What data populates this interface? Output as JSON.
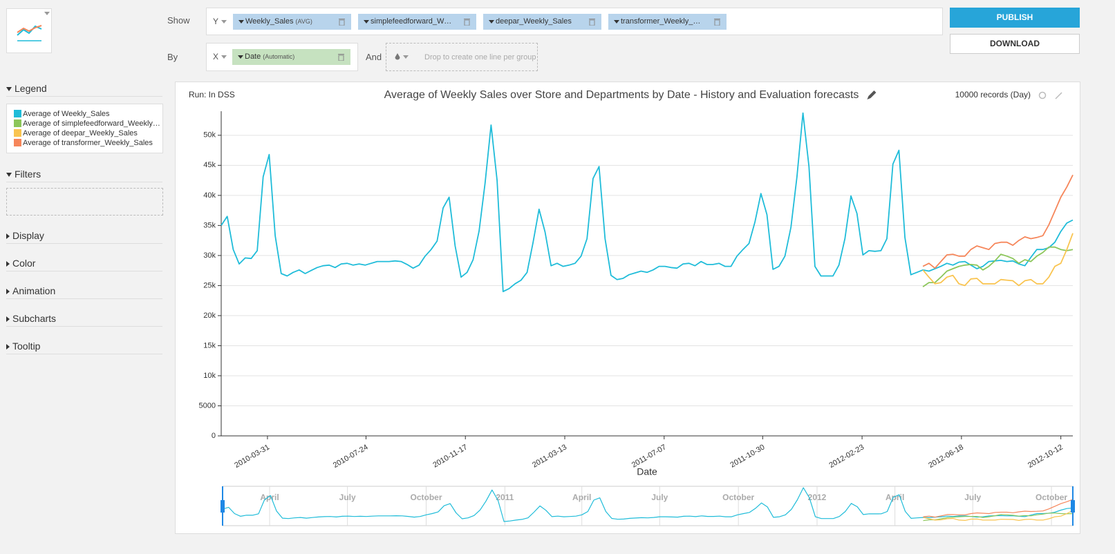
{
  "ui": {
    "show_label": "Show",
    "by_label": "By",
    "and_label": "And",
    "y_axis": "Y",
    "x_axis": "X",
    "measures": [
      {
        "name": "Weekly_Sales",
        "agg": "(AVG)"
      },
      {
        "name": "simplefeedforward_Weekly_Sales"
      },
      {
        "name": "deepar_Weekly_Sales"
      },
      {
        "name": "transformer_Weekly_Sales"
      }
    ],
    "dimension": {
      "name": "Date",
      "mode": "(Automatic)"
    },
    "group_drop": "Drop to create one line per group",
    "publish": "PUBLISH",
    "download": "DOWNLOAD",
    "sidebar": {
      "legend": "Legend",
      "filters": "Filters",
      "sections": [
        "Display",
        "Color",
        "Animation",
        "Subcharts",
        "Tooltip"
      ]
    },
    "run": "Run: In DSS",
    "records": "10000 records (Day)"
  },
  "chart_data": {
    "type": "line",
    "title": "Average of Weekly Sales over Store and Departments by Date - History and Evaluation forecasts",
    "xlabel": "Date",
    "grid": true,
    "x": [
      "2010-02-05",
      "2010-02-12",
      "2010-02-19",
      "2010-02-26",
      "2010-03-05",
      "2010-03-12",
      "2010-03-19",
      "2010-03-26",
      "2010-04-02",
      "2010-04-09",
      "2010-04-16",
      "2010-04-23",
      "2010-04-30",
      "2010-05-07",
      "2010-05-14",
      "2010-05-21",
      "2010-05-28",
      "2010-06-04",
      "2010-06-11",
      "2010-06-18",
      "2010-06-25",
      "2010-07-02",
      "2010-07-09",
      "2010-07-16",
      "2010-07-23",
      "2010-07-30",
      "2010-08-06",
      "2010-08-13",
      "2010-08-20",
      "2010-08-27",
      "2010-09-03",
      "2010-09-10",
      "2010-09-17",
      "2010-09-24",
      "2010-10-01",
      "2010-10-08",
      "2010-10-15",
      "2010-10-22",
      "2010-10-29",
      "2010-11-05",
      "2010-11-12",
      "2010-11-19",
      "2010-11-26",
      "2010-12-03",
      "2010-12-10",
      "2010-12-17",
      "2010-12-24",
      "2010-12-31",
      "2011-01-07",
      "2011-01-14",
      "2011-01-21",
      "2011-01-28",
      "2011-02-04",
      "2011-02-11",
      "2011-02-18",
      "2011-02-25",
      "2011-03-04",
      "2011-03-11",
      "2011-03-18",
      "2011-03-25",
      "2011-04-01",
      "2011-04-08",
      "2011-04-15",
      "2011-04-22",
      "2011-04-29",
      "2011-05-06",
      "2011-05-13",
      "2011-05-20",
      "2011-05-27",
      "2011-06-03",
      "2011-06-10",
      "2011-06-17",
      "2011-06-24",
      "2011-07-01",
      "2011-07-08",
      "2011-07-15",
      "2011-07-22",
      "2011-07-29",
      "2011-08-05",
      "2011-08-12",
      "2011-08-19",
      "2011-08-26",
      "2011-09-02",
      "2011-09-09",
      "2011-09-16",
      "2011-09-23",
      "2011-09-30",
      "2011-10-07",
      "2011-10-14",
      "2011-10-21",
      "2011-10-28",
      "2011-11-04",
      "2011-11-11",
      "2011-11-18",
      "2011-11-25",
      "2011-12-02",
      "2011-12-09",
      "2011-12-16",
      "2011-12-23",
      "2011-12-30",
      "2012-01-06",
      "2012-01-13",
      "2012-01-20",
      "2012-01-27",
      "2012-02-03",
      "2012-02-10",
      "2012-02-17",
      "2012-02-24",
      "2012-03-02",
      "2012-03-09",
      "2012-03-16",
      "2012-03-23",
      "2012-03-30",
      "2012-04-06",
      "2012-04-13",
      "2012-04-20",
      "2012-04-27",
      "2012-05-04",
      "2012-05-11",
      "2012-05-18",
      "2012-05-25",
      "2012-06-01",
      "2012-06-08",
      "2012-06-15",
      "2012-06-22",
      "2012-06-29",
      "2012-07-06",
      "2012-07-13",
      "2012-07-20",
      "2012-07-27",
      "2012-08-03",
      "2012-08-10",
      "2012-08-17",
      "2012-08-24",
      "2012-08-31",
      "2012-09-07",
      "2012-09-14",
      "2012-09-21",
      "2012-09-28",
      "2012-10-05",
      "2012-10-12",
      "2012-10-19",
      "2012-10-26"
    ],
    "xlim": [
      "2010-02-05",
      "2012-10-26"
    ],
    "xticks": [
      "2010-03-31",
      "2010-07-24",
      "2010-11-17",
      "2011-03-13",
      "2011-07-07",
      "2011-10-30",
      "2012-02-23",
      "2012-06-18",
      "2012-10-12"
    ],
    "ylim": [
      0,
      54000
    ],
    "yticks": [
      0,
      5000,
      {
        "value": 10000,
        "label": "10k"
      },
      {
        "value": 15000,
        "label": "15k"
      },
      {
        "value": 20000,
        "label": "20k"
      },
      {
        "value": 25000,
        "label": "25k"
      },
      {
        "value": 30000,
        "label": "30k"
      },
      {
        "value": 35000,
        "label": "35k"
      },
      {
        "value": 40000,
        "label": "40k"
      },
      {
        "value": 45000,
        "label": "45k"
      },
      {
        "value": 50000,
        "label": "50k"
      }
    ],
    "navigator_ticks": [
      {
        "value": "2010-04-01",
        "label": "April"
      },
      {
        "value": "2010-07-01",
        "label": "July"
      },
      {
        "value": "2010-10-01",
        "label": "October"
      },
      {
        "value": "2011-01-01",
        "label": "2011"
      },
      {
        "value": "2011-04-01",
        "label": "April"
      },
      {
        "value": "2011-07-01",
        "label": "July"
      },
      {
        "value": "2011-10-01",
        "label": "October"
      },
      {
        "value": "2012-01-01",
        "label": "2012"
      },
      {
        "value": "2012-04-01",
        "label": "April"
      },
      {
        "value": "2012-07-01",
        "label": "July"
      },
      {
        "value": "2012-10-01",
        "label": "October"
      }
    ],
    "series": [
      {
        "name": "Average of Weekly_Sales",
        "color": "#1fbcd9",
        "values": [
          35000,
          36500,
          31000,
          28600,
          29600,
          29500,
          30800,
          43100,
          46800,
          33300,
          27000,
          26600,
          27200,
          27600,
          27000,
          27500,
          28000,
          28300,
          28400,
          28000,
          28600,
          28700,
          28400,
          28600,
          28400,
          28700,
          29000,
          29000,
          29000,
          29100,
          29000,
          28500,
          27900,
          28400,
          29900,
          31000,
          32400,
          37900,
          39700,
          31600,
          26400,
          27200,
          29300,
          34100,
          42000,
          51700,
          42500,
          24000,
          24500,
          25300,
          25900,
          27200,
          32200,
          37700,
          33900,
          28300,
          28700,
          28200,
          28400,
          28700,
          29900,
          32800,
          42800,
          44800,
          32800,
          26700,
          26000,
          26200,
          26800,
          27100,
          27400,
          27200,
          27600,
          28200,
          28200,
          28000,
          27900,
          28600,
          28700,
          28300,
          29000,
          28500,
          28500,
          28700,
          28200,
          28200,
          29900,
          31000,
          32000,
          35600,
          40300,
          36800,
          27700,
          28200,
          29900,
          34700,
          43100,
          53700,
          44800,
          28200,
          26600,
          26600,
          26600,
          28400,
          32800,
          39900,
          37000,
          30100,
          30800,
          30700,
          30800,
          32800,
          45200,
          47500,
          33000,
          26800,
          27200,
          27600,
          27400,
          27800,
          28200,
          28700,
          28400,
          28900,
          29000,
          28400,
          27800,
          28200,
          29000,
          29100,
          29200,
          29000,
          29100,
          28600,
          28300,
          29700,
          31000,
          31000,
          31300,
          32200,
          34000,
          35400,
          35900
        ]
      },
      {
        "name": "Average of simplefeedforward_Weekly_Sales",
        "color": "#8cc65a",
        "values": [
          null,
          null,
          null,
          null,
          null,
          null,
          null,
          null,
          null,
          null,
          null,
          null,
          null,
          null,
          null,
          null,
          null,
          null,
          null,
          null,
          null,
          null,
          null,
          null,
          null,
          null,
          null,
          null,
          null,
          null,
          null,
          null,
          null,
          null,
          null,
          null,
          null,
          null,
          null,
          null,
          null,
          null,
          null,
          null,
          null,
          null,
          null,
          null,
          null,
          null,
          null,
          null,
          null,
          null,
          null,
          null,
          null,
          null,
          null,
          null,
          null,
          null,
          null,
          null,
          null,
          null,
          null,
          null,
          null,
          null,
          null,
          null,
          null,
          null,
          null,
          null,
          null,
          null,
          null,
          null,
          null,
          null,
          null,
          null,
          null,
          null,
          null,
          null,
          null,
          null,
          null,
          null,
          null,
          null,
          null,
          null,
          null,
          null,
          null,
          null,
          null,
          null,
          null,
          null,
          null,
          null,
          null,
          null,
          null,
          null,
          null,
          null,
          null,
          null,
          null,
          null,
          null,
          24800,
          25500,
          25500,
          26400,
          27400,
          27800,
          28200,
          28400,
          28500,
          28400,
          27600,
          28200,
          29100,
          30200,
          29900,
          29500,
          28700,
          29300,
          29000,
          29900,
          30500,
          31400,
          31400,
          31000,
          30800,
          31000
        ]
      },
      {
        "name": "Average of deepar_Weekly_Sales",
        "color": "#f9c450",
        "values": [
          null,
          null,
          null,
          null,
          null,
          null,
          null,
          null,
          null,
          null,
          null,
          null,
          null,
          null,
          null,
          null,
          null,
          null,
          null,
          null,
          null,
          null,
          null,
          null,
          null,
          null,
          null,
          null,
          null,
          null,
          null,
          null,
          null,
          null,
          null,
          null,
          null,
          null,
          null,
          null,
          null,
          null,
          null,
          null,
          null,
          null,
          null,
          null,
          null,
          null,
          null,
          null,
          null,
          null,
          null,
          null,
          null,
          null,
          null,
          null,
          null,
          null,
          null,
          null,
          null,
          null,
          null,
          null,
          null,
          null,
          null,
          null,
          null,
          null,
          null,
          null,
          null,
          null,
          null,
          null,
          null,
          null,
          null,
          null,
          null,
          null,
          null,
          null,
          null,
          null,
          null,
          null,
          null,
          null,
          null,
          null,
          null,
          null,
          null,
          null,
          null,
          null,
          null,
          null,
          null,
          null,
          null,
          null,
          null,
          null,
          null,
          null,
          null,
          null,
          null,
          null,
          null,
          27600,
          26400,
          25300,
          25500,
          26400,
          26700,
          25300,
          25000,
          26100,
          26200,
          25300,
          25300,
          25300,
          26000,
          25900,
          25800,
          25000,
          25800,
          26000,
          25300,
          25300,
          26400,
          28200,
          28700,
          31000,
          33700
        ]
      },
      {
        "name": "Average of transformer_Weekly_Sales",
        "color": "#f6865a",
        "values": [
          null,
          null,
          null,
          null,
          null,
          null,
          null,
          null,
          null,
          null,
          null,
          null,
          null,
          null,
          null,
          null,
          null,
          null,
          null,
          null,
          null,
          null,
          null,
          null,
          null,
          null,
          null,
          null,
          null,
          null,
          null,
          null,
          null,
          null,
          null,
          null,
          null,
          null,
          null,
          null,
          null,
          null,
          null,
          null,
          null,
          null,
          null,
          null,
          null,
          null,
          null,
          null,
          null,
          null,
          null,
          null,
          null,
          null,
          null,
          null,
          null,
          null,
          null,
          null,
          null,
          null,
          null,
          null,
          null,
          null,
          null,
          null,
          null,
          null,
          null,
          null,
          null,
          null,
          null,
          null,
          null,
          null,
          null,
          null,
          null,
          null,
          null,
          null,
          null,
          null,
          null,
          null,
          null,
          null,
          null,
          null,
          null,
          null,
          null,
          null,
          null,
          null,
          null,
          null,
          null,
          null,
          null,
          null,
          null,
          null,
          null,
          null,
          null,
          null,
          null,
          null,
          null,
          28200,
          28700,
          27900,
          29000,
          30100,
          30200,
          29900,
          29900,
          31000,
          31600,
          31300,
          31000,
          32000,
          32200,
          32200,
          31700,
          32500,
          33100,
          32800,
          33000,
          33300,
          35100,
          37400,
          39700,
          41400,
          43400
        ]
      }
    ]
  }
}
